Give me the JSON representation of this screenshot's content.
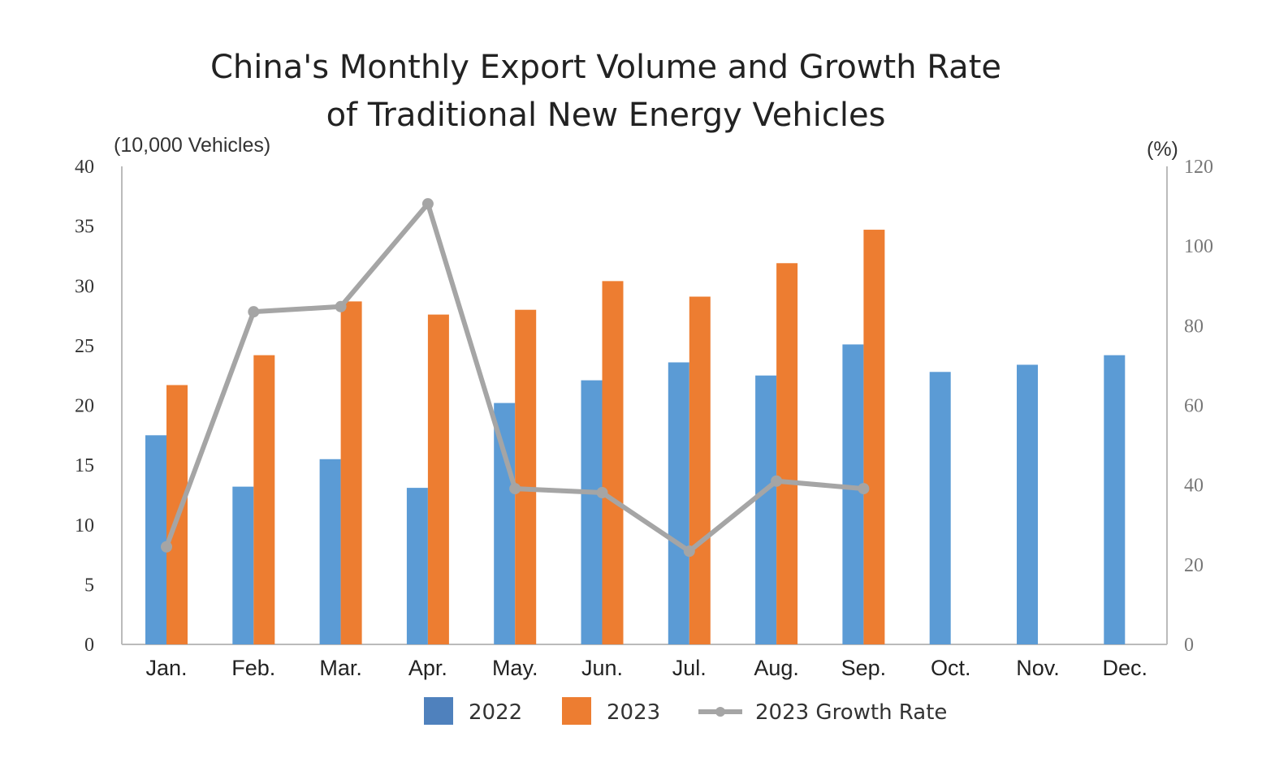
{
  "chart_data": {
    "type": "bar",
    "title_lines": [
      "China's Monthly Export Volume and Growth Rate",
      "of Traditional New Energy Vehicles"
    ],
    "ylabel_left": "(10,000 Vehicles)",
    "ylabel_right": "(%)",
    "ylim_left": [
      0,
      40
    ],
    "yticks_left": [
      "0",
      "5",
      "10",
      "15",
      "20",
      "25",
      "30",
      "35",
      "40"
    ],
    "ylim_right": [
      0,
      120
    ],
    "yticks_right": [
      "0",
      "20",
      "40",
      "60",
      "80",
      "100",
      "120"
    ],
    "categories": [
      "Jan.",
      "Feb.",
      "Mar.",
      "Apr.",
      "May.",
      "Jun.",
      "Jul.",
      "Aug.",
      "Sep.",
      "Oct.",
      "Nov.",
      "Dec."
    ],
    "series": [
      {
        "name": "2022",
        "type": "bar",
        "axis": "left",
        "color": "#5b9bd5",
        "values": [
          17.5,
          13.2,
          15.5,
          13.1,
          20.2,
          22.1,
          23.6,
          22.5,
          25.1,
          22.8,
          23.4,
          24.2
        ]
      },
      {
        "name": "2023",
        "type": "bar",
        "axis": "left",
        "color": "#ed7d31",
        "values": [
          21.7,
          24.2,
          28.7,
          27.6,
          28.0,
          30.4,
          29.1,
          31.9,
          34.7,
          null,
          null,
          null
        ]
      },
      {
        "name": "2023 Growth Rate",
        "type": "line",
        "axis": "right",
        "color": "#a5a5a5",
        "values": [
          24.5,
          83.5,
          84.8,
          110.6,
          39.1,
          38.1,
          23.4,
          41.0,
          39.1,
          null,
          null,
          null
        ]
      }
    ],
    "grid": false,
    "legend_position": "bottom"
  }
}
